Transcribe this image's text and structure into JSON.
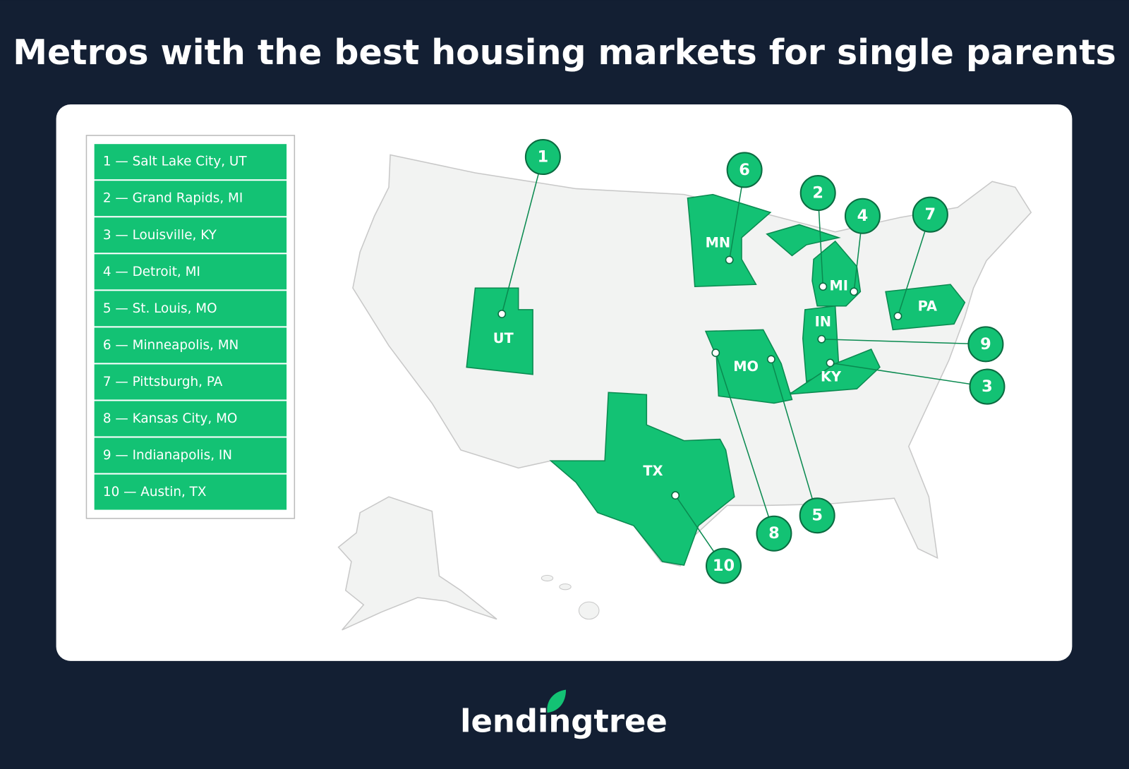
{
  "title": "Metros with the best housing markets for single parents",
  "legend": [
    "1 — Salt Lake City, UT",
    "2 — Grand Rapids, MI",
    "3 — Louisville, KY",
    "4 — Detroit, MI",
    "5 — St. Louis, MO",
    "6 — Minneapolis, MN",
    "7 — Pittsburgh, PA",
    "8 — Kansas City, MO",
    "9 — Indianapolis, IN",
    "10 — Austin, TX"
  ],
  "states": [
    "UT",
    "MN",
    "MI",
    "IN",
    "PA",
    "KY",
    "MO",
    "TX"
  ],
  "markers": [
    "1",
    "2",
    "3",
    "4",
    "5",
    "6",
    "7",
    "8",
    "9",
    "10"
  ],
  "logo": "lendingtree"
}
